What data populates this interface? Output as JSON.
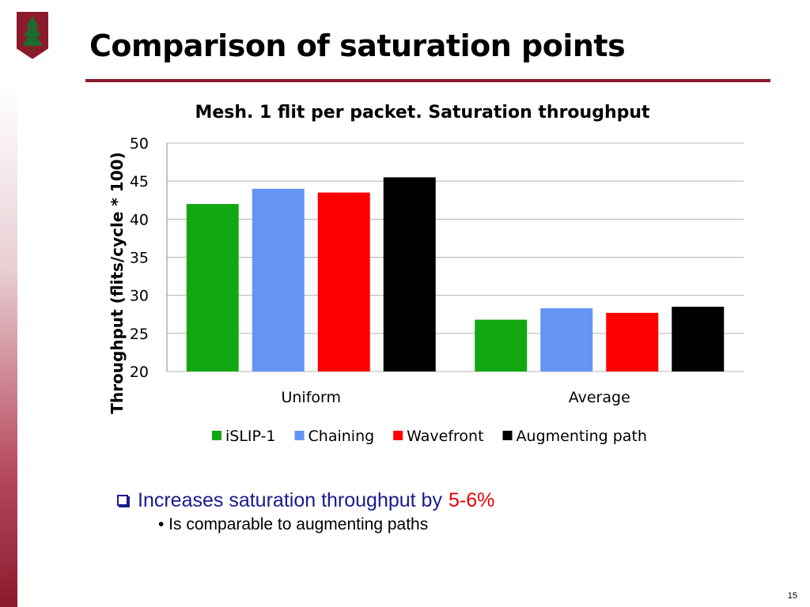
{
  "slide": {
    "title": "Comparison of saturation points",
    "page_number": "15",
    "accent_color": "#8c1a2c"
  },
  "bullets": {
    "main_text": "Increases saturation throughput by",
    "highlight": "5-6%",
    "highlight_color": "#e60000",
    "main_color": "#1a1a8f",
    "sub_text": "• Is comparable to augmenting paths"
  },
  "chart_data": {
    "type": "bar",
    "title": "Mesh. 1 flit per packet. Saturation throughput",
    "xlabel": "",
    "ylabel": "Throughput (flits/cycle * 100)",
    "ylim": [
      20,
      50
    ],
    "yticks": [
      20,
      25,
      30,
      35,
      40,
      45,
      50
    ],
    "grid": true,
    "legend_position": "bottom",
    "categories": [
      "Uniform",
      "Average"
    ],
    "series": [
      {
        "name": "iSLIP-1",
        "color": "#12a812",
        "values": [
          42.0,
          26.8
        ]
      },
      {
        "name": "Chaining",
        "color": "#6495f5",
        "values": [
          44.0,
          28.3
        ]
      },
      {
        "name": "Wavefront",
        "color": "#ff0000",
        "values": [
          43.5,
          27.7
        ]
      },
      {
        "name": "Augmenting path",
        "color": "#000000",
        "values": [
          45.5,
          28.5
        ]
      }
    ]
  }
}
